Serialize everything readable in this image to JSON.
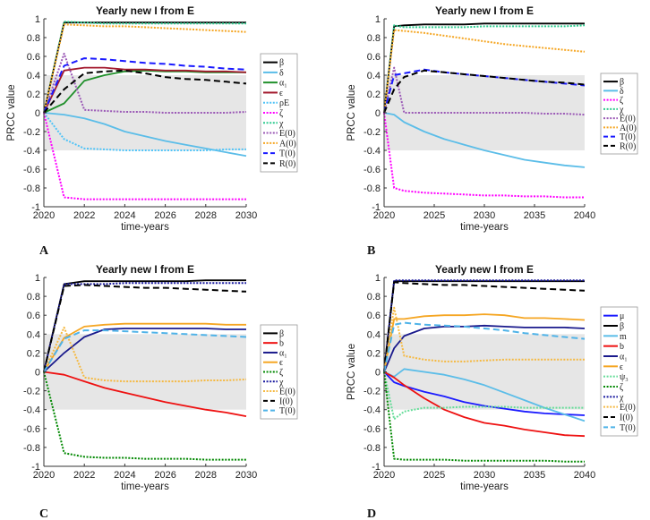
{
  "chart_data": [
    {
      "panel": "A",
      "type": "line",
      "title": "Yearly new I from E",
      "xlabel": "time-years",
      "ylabel": "PRCC value",
      "xlim": [
        2020,
        2030
      ],
      "ylim": [
        -1,
        1
      ],
      "xticks": [
        2020,
        2022,
        2024,
        2026,
        2028,
        2030
      ],
      "yticks": [
        1,
        0.8,
        0.6,
        0.4,
        0.2,
        0,
        -0.2,
        -0.4,
        -0.6,
        -0.8,
        -1
      ],
      "shaded_band": [
        -0.4,
        0.4
      ],
      "shade_color": "#e6e6e6",
      "legend_position": "outside-right",
      "x": [
        2020,
        2021,
        2022,
        2023,
        2024,
        2025,
        2026,
        2027,
        2028,
        2029,
        2030
      ],
      "series": [
        {
          "name": "β",
          "color": "#000000",
          "style": "solid",
          "values": [
            0,
            0.96,
            0.96,
            0.96,
            0.96,
            0.96,
            0.96,
            0.96,
            0.96,
            0.96,
            0.96
          ]
        },
        {
          "name": "δ",
          "color": "#5bbde8",
          "style": "solid",
          "values": [
            0,
            -0.02,
            -0.06,
            -0.12,
            -0.2,
            -0.25,
            -0.3,
            -0.34,
            -0.38,
            -0.42,
            -0.46
          ]
        },
        {
          "name": "α₁",
          "color": "#1f8f2a",
          "style": "solid",
          "values": [
            0,
            0.1,
            0.34,
            0.4,
            0.44,
            0.45,
            0.44,
            0.44,
            0.43,
            0.43,
            0.43
          ]
        },
        {
          "name": "ϵ",
          "color": "#a3192d",
          "style": "solid",
          "values": [
            0,
            0.45,
            0.48,
            0.48,
            0.46,
            0.46,
            0.45,
            0.45,
            0.44,
            0.44,
            0.43
          ]
        },
        {
          "name": "ρE",
          "color": "#4fc3f7",
          "style": "dotted",
          "values": [
            0,
            -0.28,
            -0.38,
            -0.39,
            -0.4,
            -0.4,
            -0.4,
            -0.4,
            -0.4,
            -0.39,
            -0.39
          ]
        },
        {
          "name": "ζ",
          "color": "#ff00ff",
          "style": "dotted",
          "values": [
            0,
            -0.9,
            -0.92,
            -0.92,
            -0.92,
            -0.92,
            -0.92,
            -0.92,
            -0.92,
            -0.92,
            -0.92
          ]
        },
        {
          "name": "χ",
          "color": "#2ecc8f",
          "style": "dotted",
          "values": [
            0,
            0.97,
            0.96,
            0.95,
            0.95,
            0.95,
            0.95,
            0.95,
            0.95,
            0.95,
            0.95
          ]
        },
        {
          "name": "E(0)",
          "color": "#9b59b6",
          "style": "dotted",
          "values": [
            0,
            0.63,
            0.03,
            0.02,
            0.01,
            0.01,
            0,
            0,
            0,
            0,
            0.01
          ]
        },
        {
          "name": "A(0)",
          "color": "#f5a623",
          "style": "dotted",
          "values": [
            0,
            0.94,
            0.93,
            0.92,
            0.92,
            0.91,
            0.9,
            0.89,
            0.88,
            0.87,
            0.86
          ]
        },
        {
          "name": "T(0)",
          "color": "#1a1aff",
          "style": "dashed",
          "values": [
            0,
            0.5,
            0.58,
            0.57,
            0.55,
            0.53,
            0.52,
            0.5,
            0.49,
            0.47,
            0.46
          ]
        },
        {
          "name": "R(0)",
          "color": "#000000",
          "style": "dashed",
          "values": [
            0,
            0.25,
            0.42,
            0.44,
            0.45,
            0.42,
            0.38,
            0.36,
            0.35,
            0.33,
            0.31
          ]
        }
      ]
    },
    {
      "panel": "B",
      "type": "line",
      "title": "Yearly new I from E",
      "xlabel": "time-years",
      "ylabel": "PRCC value",
      "xlim": [
        2020,
        2040
      ],
      "ylim": [
        -1,
        1
      ],
      "xticks": [
        2020,
        2025,
        2030,
        2035,
        2040
      ],
      "yticks": [
        1,
        0.8,
        0.6,
        0.4,
        0.2,
        0,
        -0.2,
        -0.4,
        -0.6,
        -0.8,
        -1
      ],
      "shaded_band": [
        -0.4,
        0.4
      ],
      "shade_color": "#e6e6e6",
      "legend_position": "outside-right",
      "x": [
        2020,
        2021,
        2022,
        2024,
        2026,
        2028,
        2030,
        2032,
        2034,
        2036,
        2038,
        2040
      ],
      "series": [
        {
          "name": "β",
          "color": "#000000",
          "style": "solid",
          "values": [
            0,
            0.92,
            0.93,
            0.94,
            0.94,
            0.94,
            0.95,
            0.95,
            0.95,
            0.95,
            0.95,
            0.95
          ]
        },
        {
          "name": "δ",
          "color": "#5bbde8",
          "style": "solid",
          "values": [
            0,
            -0.02,
            -0.1,
            -0.2,
            -0.28,
            -0.34,
            -0.4,
            -0.45,
            -0.5,
            -0.53,
            -0.56,
            -0.58
          ]
        },
        {
          "name": "ζ",
          "color": "#ff00ff",
          "style": "dotted",
          "values": [
            0,
            -0.8,
            -0.83,
            -0.85,
            -0.86,
            -0.87,
            -0.88,
            -0.88,
            -0.89,
            -0.89,
            -0.9,
            -0.9
          ]
        },
        {
          "name": "χ",
          "color": "#2ecc8f",
          "style": "dotted",
          "values": [
            0,
            0.93,
            0.91,
            0.91,
            0.91,
            0.91,
            0.92,
            0.92,
            0.92,
            0.92,
            0.92,
            0.93
          ]
        },
        {
          "name": "E(0)",
          "color": "#9b59b6",
          "style": "dotted",
          "values": [
            0,
            0.48,
            0,
            0,
            0,
            0,
            0,
            0,
            0,
            -0.01,
            -0.01,
            -0.02
          ]
        },
        {
          "name": "A(0)",
          "color": "#f5a623",
          "style": "dotted",
          "values": [
            0,
            0.88,
            0.87,
            0.85,
            0.82,
            0.79,
            0.76,
            0.73,
            0.71,
            0.69,
            0.67,
            0.65
          ]
        },
        {
          "name": "T(0)",
          "color": "#1a1aff",
          "style": "dashed",
          "values": [
            0,
            0.4,
            0.42,
            0.46,
            0.43,
            0.41,
            0.39,
            0.37,
            0.35,
            0.33,
            0.31,
            0.29
          ]
        },
        {
          "name": "R(0)",
          "color": "#000000",
          "style": "dashed",
          "values": [
            0,
            0.25,
            0.38,
            0.45,
            0.43,
            0.41,
            0.39,
            0.37,
            0.35,
            0.33,
            0.32,
            0.3
          ]
        }
      ]
    },
    {
      "panel": "C",
      "type": "line",
      "title": "Yearly new I from E",
      "xlabel": "time-years",
      "ylabel": "",
      "xlim": [
        2020,
        2030
      ],
      "ylim": [
        -1,
        1
      ],
      "xticks": [
        2020,
        2022,
        2024,
        2026,
        2028,
        2030
      ],
      "yticks": [
        1,
        0.8,
        0.6,
        0.4,
        0.2,
        0,
        -0.2,
        -0.4,
        -0.6,
        -0.8,
        -1
      ],
      "shaded_band": [
        -0.4,
        0.4
      ],
      "shade_color": "#e6e6e6",
      "legend_position": "outside-right",
      "x": [
        2020,
        2021,
        2022,
        2023,
        2024,
        2025,
        2026,
        2027,
        2028,
        2029,
        2030
      ],
      "series": [
        {
          "name": "β",
          "color": "#000000",
          "style": "solid",
          "values": [
            0,
            0.93,
            0.96,
            0.96,
            0.96,
            0.96,
            0.96,
            0.96,
            0.97,
            0.97,
            0.97
          ]
        },
        {
          "name": "b",
          "color": "#ee1111",
          "style": "solid",
          "values": [
            0,
            -0.03,
            -0.1,
            -0.17,
            -0.22,
            -0.27,
            -0.32,
            -0.36,
            -0.4,
            -0.43,
            -0.47
          ]
        },
        {
          "name": "α₁",
          "color": "#1a1a8c",
          "style": "solid",
          "values": [
            0,
            0.2,
            0.37,
            0.45,
            0.46,
            0.46,
            0.46,
            0.46,
            0.46,
            0.45,
            0.45
          ]
        },
        {
          "name": "ϵ",
          "color": "#f5a623",
          "style": "solid",
          "values": [
            0,
            0.36,
            0.48,
            0.5,
            0.51,
            0.51,
            0.51,
            0.51,
            0.51,
            0.5,
            0.5
          ]
        },
        {
          "name": "ζ",
          "color": "#008800",
          "style": "dotted",
          "values": [
            0,
            -0.86,
            -0.9,
            -0.91,
            -0.91,
            -0.92,
            -0.92,
            -0.92,
            -0.93,
            -0.93,
            -0.93
          ]
        },
        {
          "name": "χ",
          "color": "#1a1aa0",
          "style": "dotted",
          "values": [
            0,
            0.93,
            0.93,
            0.93,
            0.94,
            0.94,
            0.94,
            0.94,
            0.94,
            0.94,
            0.94
          ]
        },
        {
          "name": "E(0)",
          "color": "#f5b942",
          "style": "dotted",
          "values": [
            0,
            0.47,
            -0.06,
            -0.09,
            -0.1,
            -0.1,
            -0.1,
            -0.1,
            -0.09,
            -0.09,
            -0.08
          ]
        },
        {
          "name": "I(0)",
          "color": "#000000",
          "style": "dashed",
          "values": [
            0,
            0.91,
            0.92,
            0.91,
            0.9,
            0.89,
            0.89,
            0.88,
            0.87,
            0.86,
            0.85
          ]
        },
        {
          "name": "T(0)",
          "color": "#4fb3e8",
          "style": "dashed",
          "values": [
            0,
            0.35,
            0.44,
            0.44,
            0.43,
            0.42,
            0.41,
            0.4,
            0.39,
            0.38,
            0.37
          ]
        }
      ]
    },
    {
      "panel": "D",
      "type": "line",
      "title": "Yearly new I from E",
      "xlabel": "time-years",
      "ylabel": "PRCC value",
      "xlim": [
        2020,
        2040
      ],
      "ylim": [
        -1,
        1
      ],
      "xticks": [
        2020,
        2025,
        2030,
        2035,
        2040
      ],
      "yticks": [
        1,
        0.8,
        0.6,
        0.4,
        0.2,
        0,
        -0.2,
        -0.4,
        -0.6,
        -0.8,
        -1
      ],
      "shaded_band": [
        -0.4,
        0.4
      ],
      "shade_color": "#e6e6e6",
      "legend_position": "outside-right",
      "x": [
        2020,
        2021,
        2022,
        2024,
        2026,
        2028,
        2030,
        2032,
        2034,
        2036,
        2038,
        2040
      ],
      "series": [
        {
          "name": "μ",
          "color": "#1a1aff",
          "style": "solid",
          "values": [
            0,
            -0.11,
            -0.15,
            -0.21,
            -0.26,
            -0.32,
            -0.36,
            -0.39,
            -0.42,
            -0.44,
            -0.45,
            -0.46
          ]
        },
        {
          "name": "β",
          "color": "#000000",
          "style": "solid",
          "values": [
            0,
            0.96,
            0.96,
            0.96,
            0.96,
            0.96,
            0.96,
            0.96,
            0.96,
            0.96,
            0.96,
            0.96
          ]
        },
        {
          "name": "m",
          "color": "#5bbde8",
          "style": "solid",
          "values": [
            0,
            -0.05,
            0.03,
            0,
            -0.03,
            -0.08,
            -0.14,
            -0.22,
            -0.3,
            -0.38,
            -0.45,
            -0.52
          ]
        },
        {
          "name": "b",
          "color": "#ee1111",
          "style": "solid",
          "values": [
            0,
            -0.06,
            -0.14,
            -0.28,
            -0.4,
            -0.48,
            -0.54,
            -0.57,
            -0.61,
            -0.64,
            -0.67,
            -0.68
          ]
        },
        {
          "name": "α₁",
          "color": "#1a1a8c",
          "style": "solid",
          "values": [
            0,
            0.25,
            0.38,
            0.46,
            0.48,
            0.48,
            0.49,
            0.48,
            0.47,
            0.47,
            0.47,
            0.46
          ]
        },
        {
          "name": "ϵ",
          "color": "#f5a623",
          "style": "solid",
          "values": [
            0,
            0.56,
            0.56,
            0.59,
            0.6,
            0.6,
            0.61,
            0.6,
            0.57,
            0.57,
            0.56,
            0.55
          ]
        },
        {
          "name": "ψ₃",
          "color": "#66dd99",
          "style": "dotted",
          "values": [
            0,
            -0.5,
            -0.42,
            -0.38,
            -0.38,
            -0.37,
            -0.37,
            -0.37,
            -0.38,
            -0.38,
            -0.38,
            -0.38
          ]
        },
        {
          "name": "ζ",
          "color": "#008800",
          "style": "dotted",
          "values": [
            0,
            -0.92,
            -0.93,
            -0.93,
            -0.93,
            -0.94,
            -0.94,
            -0.94,
            -0.94,
            -0.94,
            -0.95,
            -0.95
          ]
        },
        {
          "name": "χ",
          "color": "#1a1aa0",
          "style": "dotted",
          "values": [
            0,
            0.97,
            0.97,
            0.97,
            0.97,
            0.97,
            0.97,
            0.97,
            0.97,
            0.97,
            0.97,
            0.97
          ]
        },
        {
          "name": "E(0)",
          "color": "#f5b942",
          "style": "dotted",
          "values": [
            0,
            0.68,
            0.17,
            0.13,
            0.11,
            0.11,
            0.12,
            0.13,
            0.13,
            0.13,
            0.13,
            0.13
          ]
        },
        {
          "name": "I(0)",
          "color": "#000000",
          "style": "dashed",
          "values": [
            0,
            0.95,
            0.94,
            0.93,
            0.92,
            0.92,
            0.91,
            0.9,
            0.89,
            0.88,
            0.87,
            0.86
          ]
        },
        {
          "name": "T(0)",
          "color": "#4fb3e8",
          "style": "dashed",
          "values": [
            0,
            0.5,
            0.52,
            0.5,
            0.49,
            0.48,
            0.46,
            0.44,
            0.41,
            0.39,
            0.37,
            0.35
          ]
        }
      ]
    }
  ]
}
